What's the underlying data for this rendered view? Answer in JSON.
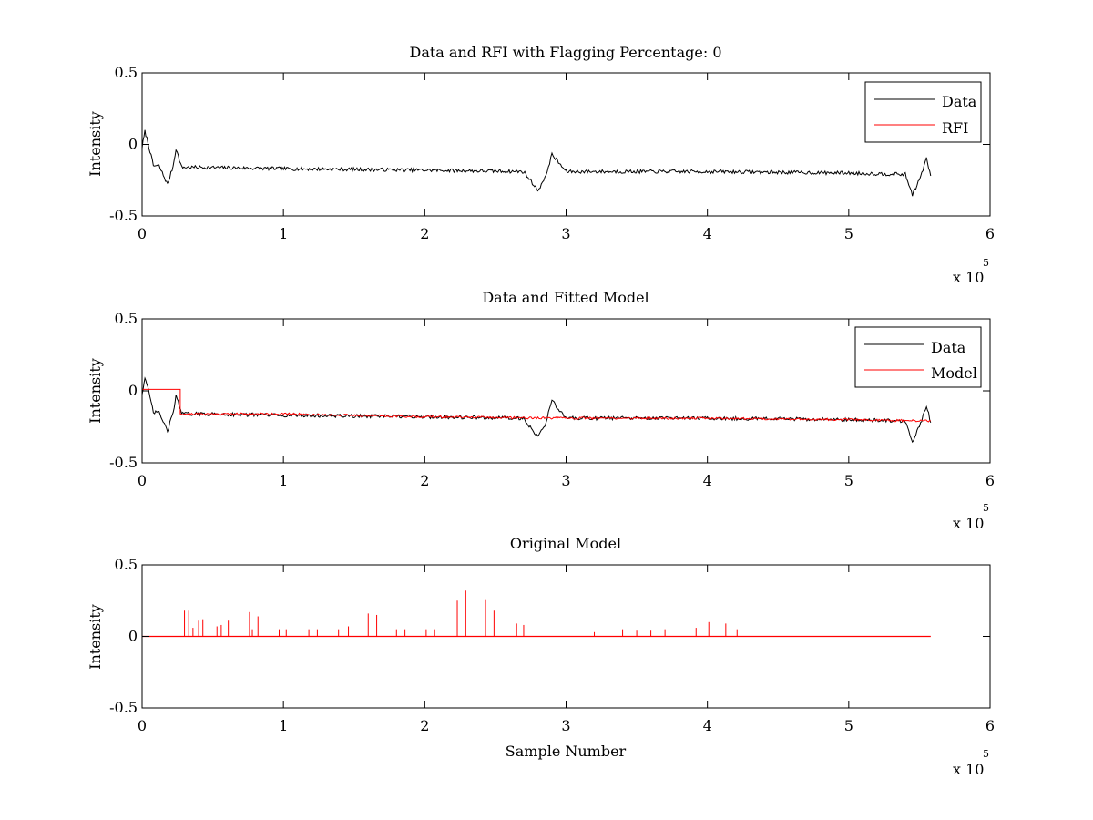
{
  "figure": {
    "background": "#ffffff"
  },
  "chart_data": [
    {
      "type": "line",
      "title": "Data and RFI with Flagging Percentage: 0",
      "xlabel": "",
      "ylabel": "Intensity",
      "xlim": [
        0,
        600000
      ],
      "ylim": [
        -0.5,
        0.5
      ],
      "x_ticks": [
        0,
        1,
        2,
        3,
        4,
        5,
        6
      ],
      "y_ticks": [
        "0.5",
        "0",
        "-0.5"
      ],
      "x_multiplier_label": "x 10",
      "x_multiplier_exponent": "5",
      "grid": false,
      "legend_position": "top-right",
      "series": [
        {
          "name": "Data",
          "color": "#000000",
          "x": [
            0,
            2000,
            4000,
            8000,
            12000,
            18000,
            22000,
            24000,
            28000,
            40000,
            100000,
            200000,
            270000,
            280000,
            285000,
            290000,
            300000,
            400000,
            500000,
            540000,
            545000,
            550000,
            555000,
            558000
          ],
          "y": [
            -0.02,
            0.09,
            0.02,
            -0.15,
            -0.15,
            -0.28,
            -0.15,
            -0.03,
            -0.16,
            -0.16,
            -0.17,
            -0.18,
            -0.19,
            -0.32,
            -0.24,
            -0.07,
            -0.19,
            -0.19,
            -0.2,
            -0.21,
            -0.35,
            -0.25,
            -0.1,
            -0.22
          ]
        },
        {
          "name": "RFI",
          "color": "#ff0000",
          "x": [],
          "y": []
        }
      ]
    },
    {
      "type": "line",
      "title": "Data and Fitted Model",
      "xlabel": "",
      "ylabel": "Intensity",
      "xlim": [
        0,
        600000
      ],
      "ylim": [
        -0.5,
        0.5
      ],
      "x_ticks": [
        0,
        1,
        2,
        3,
        4,
        5,
        6
      ],
      "y_ticks": [
        "0.5",
        "0",
        "-0.5"
      ],
      "x_multiplier_label": "x 10",
      "x_multiplier_exponent": "5",
      "grid": false,
      "legend_position": "top-right",
      "series": [
        {
          "name": "Data",
          "color": "#000000",
          "x": [
            0,
            2000,
            4000,
            8000,
            12000,
            18000,
            22000,
            24000,
            28000,
            40000,
            100000,
            200000,
            270000,
            280000,
            285000,
            290000,
            300000,
            400000,
            500000,
            540000,
            545000,
            550000,
            555000,
            558000
          ],
          "y": [
            -0.02,
            0.09,
            0.02,
            -0.15,
            -0.15,
            -0.28,
            -0.15,
            -0.03,
            -0.16,
            -0.16,
            -0.17,
            -0.18,
            -0.19,
            -0.32,
            -0.24,
            -0.07,
            -0.19,
            -0.19,
            -0.2,
            -0.21,
            -0.35,
            -0.25,
            -0.1,
            -0.22
          ]
        },
        {
          "name": "Model",
          "color": "#ff0000",
          "x": [
            0,
            27000,
            27000,
            100000,
            200000,
            300000,
            400000,
            500000,
            558000
          ],
          "y": [
            0.01,
            0.01,
            -0.16,
            -0.16,
            -0.18,
            -0.19,
            -0.19,
            -0.2,
            -0.21
          ]
        }
      ]
    },
    {
      "type": "line",
      "title": "Original Model",
      "xlabel": "Sample Number",
      "ylabel": "Intensity",
      "xlim": [
        0,
        600000
      ],
      "ylim": [
        -0.5,
        0.5
      ],
      "x_ticks": [
        0,
        1,
        2,
        3,
        4,
        5,
        6
      ],
      "y_ticks": [
        "0.5",
        "0",
        "-0.5"
      ],
      "x_multiplier_label": "x 10",
      "x_multiplier_exponent": "5",
      "grid": false,
      "legend_position": "none",
      "series": [
        {
          "color": "#ff0000",
          "baseline": 0.0,
          "x_end": 558000,
          "spikes": [
            {
              "x": 30000,
              "y": 0.18
            },
            {
              "x": 33000,
              "y": 0.18
            },
            {
              "x": 36000,
              "y": 0.06
            },
            {
              "x": 40000,
              "y": 0.11
            },
            {
              "x": 43000,
              "y": 0.12
            },
            {
              "x": 53000,
              "y": 0.07
            },
            {
              "x": 56000,
              "y": 0.08
            },
            {
              "x": 61000,
              "y": 0.11
            },
            {
              "x": 76000,
              "y": 0.17
            },
            {
              "x": 78000,
              "y": 0.05
            },
            {
              "x": 82000,
              "y": 0.14
            },
            {
              "x": 97000,
              "y": 0.05
            },
            {
              "x": 102000,
              "y": 0.05
            },
            {
              "x": 118000,
              "y": 0.05
            },
            {
              "x": 124000,
              "y": 0.05
            },
            {
              "x": 139000,
              "y": 0.05
            },
            {
              "x": 146000,
              "y": 0.07
            },
            {
              "x": 160000,
              "y": 0.16
            },
            {
              "x": 166000,
              "y": 0.15
            },
            {
              "x": 180000,
              "y": 0.05
            },
            {
              "x": 186000,
              "y": 0.05
            },
            {
              "x": 201000,
              "y": 0.05
            },
            {
              "x": 207000,
              "y": 0.05
            },
            {
              "x": 223000,
              "y": 0.25
            },
            {
              "x": 229000,
              "y": 0.32
            },
            {
              "x": 243000,
              "y": 0.26
            },
            {
              "x": 249000,
              "y": 0.18
            },
            {
              "x": 265000,
              "y": 0.09
            },
            {
              "x": 270000,
              "y": 0.08
            },
            {
              "x": 320000,
              "y": 0.03
            },
            {
              "x": 340000,
              "y": 0.05
            },
            {
              "x": 350000,
              "y": 0.04
            },
            {
              "x": 360000,
              "y": 0.04
            },
            {
              "x": 370000,
              "y": 0.05
            },
            {
              "x": 392000,
              "y": 0.06
            },
            {
              "x": 401000,
              "y": 0.1
            },
            {
              "x": 413000,
              "y": 0.09
            },
            {
              "x": 421000,
              "y": 0.05
            }
          ]
        }
      ]
    }
  ]
}
